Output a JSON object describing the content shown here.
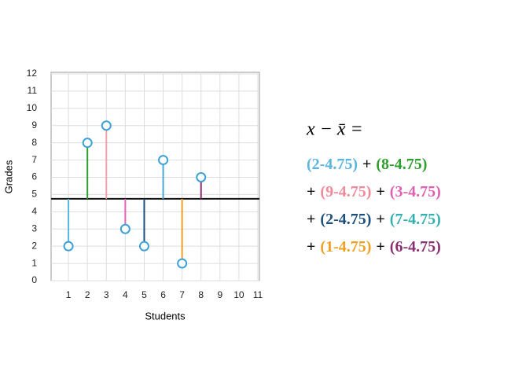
{
  "chart_data": {
    "type": "lollipop",
    "x_label": "Students",
    "y_label": "Grades",
    "x": [
      1,
      2,
      3,
      4,
      5,
      6,
      7,
      8
    ],
    "values": [
      2,
      8,
      9,
      3,
      2,
      7,
      1,
      6
    ],
    "colors": [
      "#5ab4e0",
      "#2e9e2e",
      "#f2a0a8",
      "#e565b5",
      "#1d4f7c",
      "#4aa8d8",
      "#f0a020",
      "#8a2f70"
    ],
    "marker_color": "#3aa0d8",
    "mean": 4.75,
    "xlim": [
      0,
      11
    ],
    "xticks": [
      1,
      2,
      3,
      4,
      5,
      6,
      7,
      8,
      9,
      10,
      11
    ],
    "ylim": [
      0,
      12
    ],
    "yticks": [
      0,
      1,
      2,
      3,
      4,
      5,
      6,
      7,
      8,
      9,
      10,
      11,
      12
    ],
    "grid": true,
    "formula": {
      "lhs": "x − x̄ =",
      "plus": "+",
      "terms": [
        {
          "text": "(2-4.75)",
          "color": "#5ab4e0"
        },
        {
          "text": "(8-4.75)",
          "color": "#2e9e2e"
        },
        {
          "text": "(9-4.75)",
          "color": "#f08a9a"
        },
        {
          "text": "(3-4.75)",
          "color": "#e060b0"
        },
        {
          "text": "(2-4.75)",
          "color": "#1d4f7c"
        },
        {
          "text": "(7-4.75)",
          "color": "#35b0b0"
        },
        {
          "text": "(1-4.75)",
          "color": "#f0a020"
        },
        {
          "text": "(6-4.75)",
          "color": "#8a2f70"
        }
      ]
    }
  }
}
